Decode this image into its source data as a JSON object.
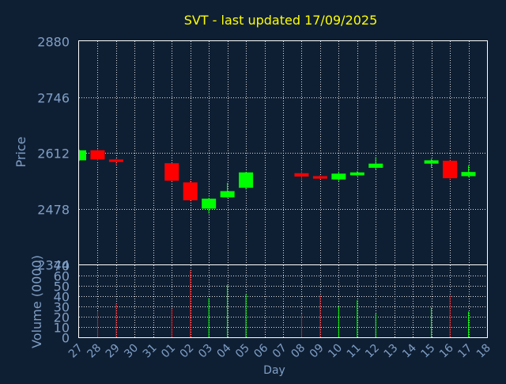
{
  "title": "SVT - last updated 17/09/2025",
  "colors": {
    "background": "#0f1f33",
    "title": "#ffff00",
    "axis_text": "#7f9fc7",
    "frame": "#ffffff",
    "grid": "#ffffff",
    "up": "#00ff00",
    "down": "#ff0000"
  },
  "chart_data": [
    {
      "type": "candlestick",
      "ylabel": "Price",
      "ylim": [
        2344,
        2880
      ],
      "y_ticks": [
        2880,
        2746,
        2612,
        2478,
        2344
      ],
      "grid": true,
      "days": [
        "27",
        "28",
        "29",
        "30",
        "31",
        "01",
        "02",
        "03",
        "04",
        "05",
        "06",
        "07",
        "08",
        "09",
        "10",
        "11",
        "12",
        "13",
        "14",
        "15",
        "16",
        "17",
        "18"
      ],
      "candles": [
        {
          "day": "27",
          "open": 2594,
          "close": 2618,
          "high": 2620,
          "low": 2592
        },
        {
          "day": "28",
          "open": 2618,
          "close": 2596,
          "high": 2622,
          "low": 2593
        },
        {
          "day": "29",
          "open": 2596,
          "close": 2590,
          "high": 2598,
          "low": 2582
        },
        {
          "day": "01",
          "open": 2587,
          "close": 2545,
          "high": 2588,
          "low": 2543
        },
        {
          "day": "02",
          "open": 2541,
          "close": 2498,
          "high": 2546,
          "low": 2496
        },
        {
          "day": "03",
          "open": 2478,
          "close": 2502,
          "high": 2504,
          "low": 2466
        },
        {
          "day": "04",
          "open": 2505,
          "close": 2520,
          "high": 2540,
          "low": 2504
        },
        {
          "day": "05",
          "open": 2528,
          "close": 2565,
          "high": 2566,
          "low": 2524
        },
        {
          "day": "08",
          "open": 2563,
          "close": 2555,
          "high": 2568,
          "low": 2544
        },
        {
          "day": "09",
          "open": 2556,
          "close": 2550,
          "high": 2558,
          "low": 2548
        },
        {
          "day": "10",
          "open": 2548,
          "close": 2562,
          "high": 2567,
          "low": 2544
        },
        {
          "day": "11",
          "open": 2558,
          "close": 2565,
          "high": 2568,
          "low": 2556
        },
        {
          "day": "12",
          "open": 2576,
          "close": 2586,
          "high": 2602,
          "low": 2572
        },
        {
          "day": "15",
          "open": 2586,
          "close": 2594,
          "high": 2598,
          "low": 2576
        },
        {
          "day": "16",
          "open": 2593,
          "close": 2551,
          "high": 2595,
          "low": 2546
        },
        {
          "day": "17",
          "open": 2556,
          "close": 2566,
          "high": 2582,
          "low": 2554
        }
      ]
    },
    {
      "type": "bar",
      "ylabel": "Volume (0000)",
      "xlabel": "Day",
      "ylim": [
        0,
        70
      ],
      "y_ticks": [
        0,
        10,
        20,
        30,
        40,
        50,
        60,
        70
      ],
      "grid": true,
      "bars": [
        {
          "day": "28",
          "value": 25,
          "direction": "down"
        },
        {
          "day": "29",
          "value": 33,
          "direction": "down"
        },
        {
          "day": "01",
          "value": 28,
          "direction": "down"
        },
        {
          "day": "02",
          "value": 65,
          "direction": "down"
        },
        {
          "day": "03",
          "value": 38,
          "direction": "up"
        },
        {
          "day": "04",
          "value": 51,
          "direction": "up"
        },
        {
          "day": "05",
          "value": 42,
          "direction": "up"
        },
        {
          "day": "08",
          "value": 23,
          "direction": "down"
        },
        {
          "day": "09",
          "value": 41,
          "direction": "down"
        },
        {
          "day": "10",
          "value": 30,
          "direction": "up"
        },
        {
          "day": "11",
          "value": 36,
          "direction": "up"
        },
        {
          "day": "12",
          "value": 23,
          "direction": "up"
        },
        {
          "day": "15",
          "value": 29,
          "direction": "up"
        },
        {
          "day": "16",
          "value": 41,
          "direction": "down"
        },
        {
          "day": "17",
          "value": 25,
          "direction": "up"
        }
      ]
    }
  ]
}
